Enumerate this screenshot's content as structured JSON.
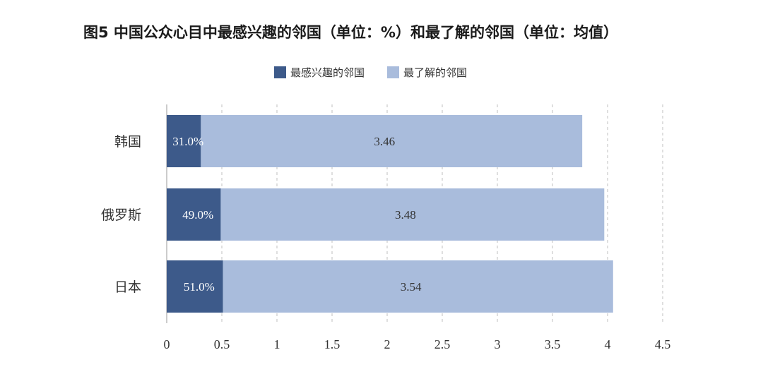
{
  "title": "图5  中国公众心目中最感兴趣的邻国（单位：%）和最了解的邻国（单位：均值）",
  "colors": {
    "interest": "#3d5a8a",
    "understanding": "#a9bcdc",
    "grid": "#bfbfbf"
  },
  "chart_data": {
    "type": "bar",
    "orientation": "horizontal",
    "stacked": true,
    "categories": [
      "韩国",
      "俄罗斯",
      "日本"
    ],
    "series": [
      {
        "name": "最感兴趣的邻国",
        "values": [
          0.31,
          0.49,
          0.51
        ],
        "labels": [
          "31.0%",
          "49.0%",
          "51.0%"
        ]
      },
      {
        "name": "最了解的邻国",
        "values": [
          3.46,
          3.48,
          3.54
        ],
        "labels": [
          "3.46",
          "3.48",
          "3.54"
        ]
      }
    ],
    "xlim": [
      0,
      4.5
    ],
    "xticks": [
      "0",
      "0.5",
      "1",
      "1.5",
      "2",
      "2.5",
      "3",
      "3.5",
      "4",
      "4.5"
    ],
    "grid": "vertical dashed",
    "legend": "top-center"
  }
}
